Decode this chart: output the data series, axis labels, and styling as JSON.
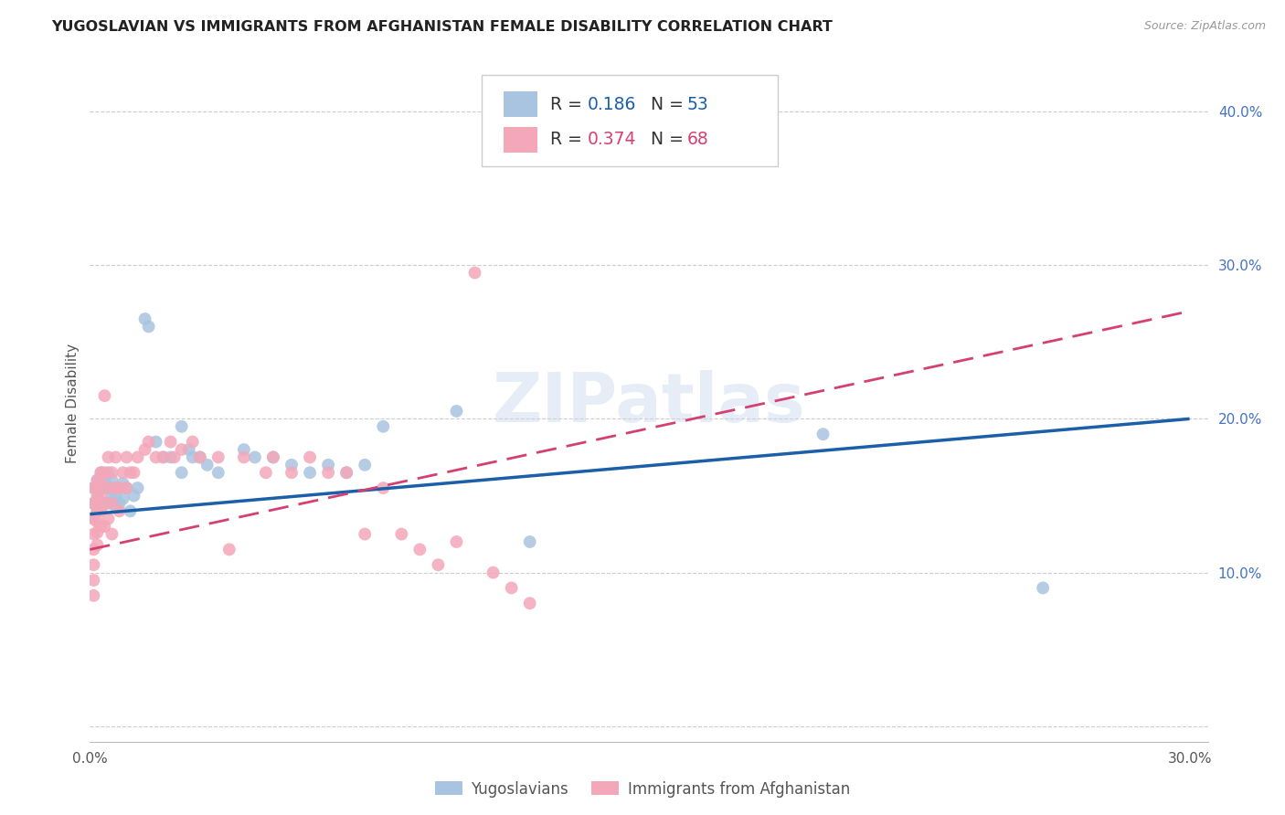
{
  "title": "YUGOSLAVIAN VS IMMIGRANTS FROM AFGHANISTAN FEMALE DISABILITY CORRELATION CHART",
  "source": "Source: ZipAtlas.com",
  "ylabel": "Female Disability",
  "xlim": [
    0.0,
    0.305
  ],
  "ylim": [
    -0.01,
    0.43
  ],
  "blue_color": "#a8c4e0",
  "pink_color": "#f4a7b9",
  "blue_line_color": "#1a5fa8",
  "pink_line_color": "#d44070",
  "watermark": "ZIPatlas",
  "legend_bottom_blue": "Yugoslavians",
  "legend_bottom_pink": "Immigrants from Afghanistan",
  "R_blue_str": "0.186",
  "N_blue_str": "53",
  "R_pink_str": "0.374",
  "N_pink_str": "68",
  "blue_x": [
    0.001,
    0.001,
    0.001,
    0.002,
    0.002,
    0.002,
    0.003,
    0.003,
    0.003,
    0.004,
    0.004,
    0.004,
    0.005,
    0.005,
    0.005,
    0.006,
    0.006,
    0.006,
    0.007,
    0.007,
    0.008,
    0.008,
    0.009,
    0.009,
    0.01,
    0.011,
    0.012,
    0.013,
    0.015,
    0.016,
    0.018,
    0.02,
    0.022,
    0.025,
    0.025,
    0.027,
    0.028,
    0.03,
    0.032,
    0.035,
    0.042,
    0.045,
    0.05,
    0.055,
    0.06,
    0.065,
    0.07,
    0.075,
    0.08,
    0.1,
    0.12,
    0.2,
    0.26
  ],
  "blue_y": [
    0.155,
    0.145,
    0.135,
    0.16,
    0.15,
    0.14,
    0.165,
    0.155,
    0.145,
    0.16,
    0.155,
    0.145,
    0.165,
    0.155,
    0.145,
    0.16,
    0.155,
    0.148,
    0.15,
    0.143,
    0.155,
    0.145,
    0.158,
    0.148,
    0.155,
    0.14,
    0.15,
    0.155,
    0.265,
    0.26,
    0.185,
    0.175,
    0.175,
    0.195,
    0.165,
    0.18,
    0.175,
    0.175,
    0.17,
    0.165,
    0.18,
    0.175,
    0.175,
    0.17,
    0.165,
    0.17,
    0.165,
    0.17,
    0.195,
    0.205,
    0.12,
    0.19,
    0.09
  ],
  "pink_x": [
    0.001,
    0.001,
    0.001,
    0.001,
    0.001,
    0.001,
    0.001,
    0.001,
    0.002,
    0.002,
    0.002,
    0.002,
    0.002,
    0.002,
    0.002,
    0.003,
    0.003,
    0.003,
    0.003,
    0.003,
    0.004,
    0.004,
    0.004,
    0.004,
    0.005,
    0.005,
    0.005,
    0.006,
    0.006,
    0.006,
    0.007,
    0.007,
    0.008,
    0.008,
    0.009,
    0.01,
    0.01,
    0.011,
    0.012,
    0.013,
    0.015,
    0.016,
    0.018,
    0.02,
    0.022,
    0.023,
    0.025,
    0.028,
    0.03,
    0.035,
    0.038,
    0.042,
    0.048,
    0.05,
    0.055,
    0.06,
    0.065,
    0.07,
    0.075,
    0.08,
    0.085,
    0.09,
    0.095,
    0.1,
    0.105,
    0.11,
    0.115,
    0.12
  ],
  "pink_y": [
    0.155,
    0.145,
    0.135,
    0.125,
    0.115,
    0.105,
    0.095,
    0.085,
    0.16,
    0.155,
    0.148,
    0.14,
    0.133,
    0.126,
    0.118,
    0.165,
    0.158,
    0.15,
    0.14,
    0.13,
    0.215,
    0.165,
    0.145,
    0.13,
    0.175,
    0.155,
    0.135,
    0.165,
    0.145,
    0.125,
    0.175,
    0.155,
    0.155,
    0.14,
    0.165,
    0.175,
    0.155,
    0.165,
    0.165,
    0.175,
    0.18,
    0.185,
    0.175,
    0.175,
    0.185,
    0.175,
    0.18,
    0.185,
    0.175,
    0.175,
    0.115,
    0.175,
    0.165,
    0.175,
    0.165,
    0.175,
    0.165,
    0.165,
    0.125,
    0.155,
    0.125,
    0.115,
    0.105,
    0.12,
    0.295,
    0.1,
    0.09,
    0.08
  ]
}
